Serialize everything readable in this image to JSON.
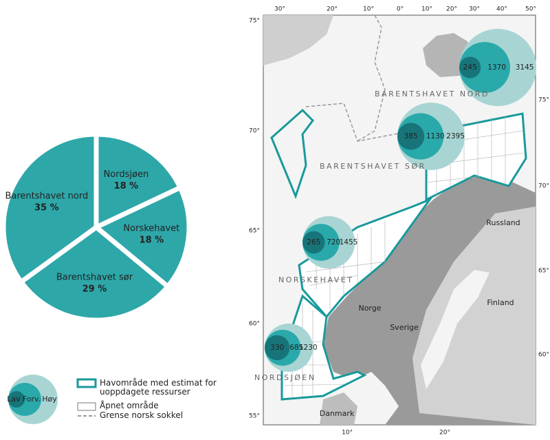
{
  "chart_data": [
    {
      "type": "pie",
      "categories": [
        "Nordsjøen",
        "Norskehavet",
        "Barentshavet sør",
        "Barentshavet nord"
      ],
      "values": [
        18,
        18,
        29,
        35
      ],
      "value_labels": [
        "18 %",
        "18 %",
        "29 %",
        "35 %"
      ],
      "color": "#2ea7a9"
    },
    {
      "type": "bubble",
      "categories": [
        "BARENTSHAVET NORD",
        "BARENTSHAVET SØR",
        "NORSKEHAVET",
        "NORDSJØEN"
      ],
      "series": [
        {
          "name": "Lav",
          "color": "#17757a",
          "values": [
            245,
            385,
            265,
            330
          ]
        },
        {
          "name": "Forv.",
          "color": "#2aa9ab",
          "values": [
            1370,
            1130,
            720,
            685
          ]
        },
        {
          "name": "Høy",
          "color": "#a8d5d3",
          "values": [
            3145,
            2395,
            1455,
            1230
          ]
        }
      ]
    }
  ],
  "map": {
    "places": [
      "Russland",
      "Finland",
      "Norge",
      "Sverige",
      "Danmark"
    ],
    "lat_left": [
      "75°",
      "70°",
      "65°",
      "60°",
      "55°"
    ],
    "lat_right": [
      "75°",
      "70°",
      "65°",
      "60°"
    ],
    "lon_top": [
      "30°",
      "20°",
      "10°",
      "0°",
      "10°",
      "20°",
      "30°",
      "40°",
      "50°"
    ],
    "lon_bottom": [
      "10°",
      "20°"
    ]
  },
  "legend": {
    "items": [
      "Havområde med estimat for uoppdagete ressurser",
      "Åpnet område",
      "Grense norsk sokkel"
    ]
  }
}
